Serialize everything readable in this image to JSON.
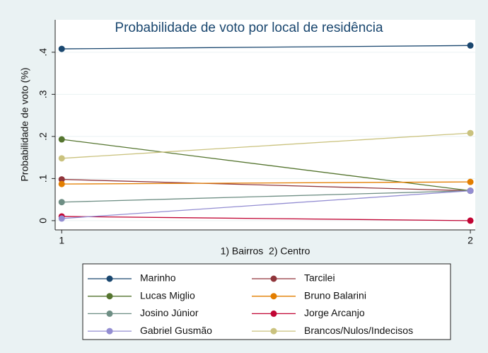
{
  "chart_data": {
    "type": "line",
    "title": "Probabilidade de voto por local de residência",
    "y_label": "Probabilidade de voto (%)",
    "x_label": "1) Bairros  2) Centro",
    "x": [
      1,
      2
    ],
    "xlim": [
      0.984,
      2.012
    ],
    "xticks": [
      1,
      2
    ],
    "ylim": [
      -0.022,
      0.477
    ],
    "yticks": [
      0,
      {
        "value": 0.1,
        "label": ".1"
      },
      {
        "value": 0.2,
        "label": ".2"
      },
      {
        "value": 0.3,
        "label": ".3"
      },
      {
        "value": 0.4,
        "label": ".4"
      }
    ],
    "grid": true,
    "legend": "bottom",
    "series": [
      {
        "name": "Marinho",
        "color": "#1a476f",
        "values": [
          0.408,
          0.416
        ]
      },
      {
        "name": "Tarcilei",
        "color": "#90353b",
        "values": [
          0.098,
          0.071
        ]
      },
      {
        "name": "Lucas Miglio",
        "color": "#55752f",
        "values": [
          0.193,
          0.071
        ]
      },
      {
        "name": "Bruno Balarini",
        "color": "#e37e00",
        "values": [
          0.087,
          0.092
        ]
      },
      {
        "name": "Josino Júnior",
        "color": "#6e8e84",
        "values": [
          0.044,
          0.071
        ]
      },
      {
        "name": "Jorge Arcanjo",
        "color": "#c10534",
        "values": [
          0.01,
          0
        ]
      },
      {
        "name": "Gabriel Gusmão",
        "color": "#938dd2",
        "values": [
          0.005,
          0.071
        ]
      },
      {
        "name": "Brancos/Nulos/Indecisos",
        "color": "#cac27e",
        "values": [
          0.148,
          0.208
        ]
      }
    ]
  }
}
